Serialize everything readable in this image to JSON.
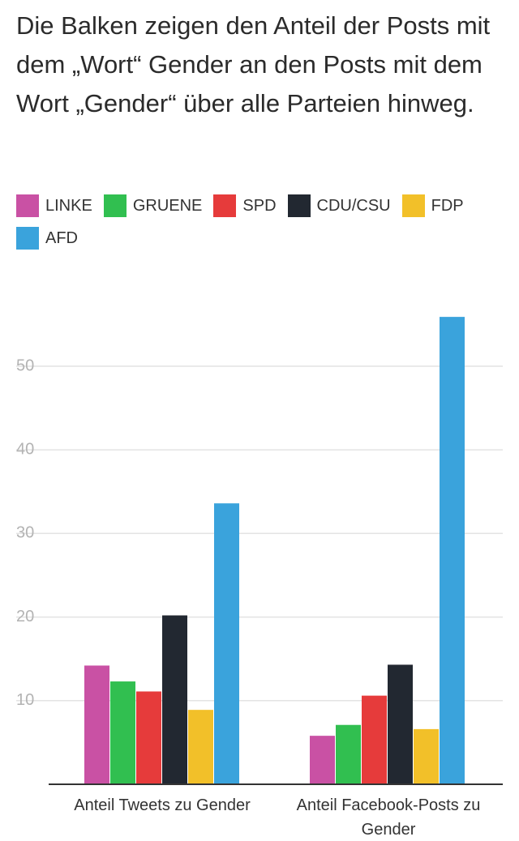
{
  "title": "Die Balken zeigen den Anteil der Posts mit dem „Wort“ Gender an den Posts mit dem Wort „Gender“ über alle Parteien hinweg.",
  "legend": [
    {
      "name": "LINKE",
      "color": "#c951a4"
    },
    {
      "name": "GRUENE",
      "color": "#31bf50"
    },
    {
      "name": "SPD",
      "color": "#e63b3b"
    },
    {
      "name": "CDU/CSU",
      "color": "#222831"
    },
    {
      "name": "FDP",
      "color": "#f2c029"
    },
    {
      "name": "AFD",
      "color": "#3aa3dc"
    }
  ],
  "chart_data": {
    "type": "bar",
    "categories": [
      "Anteil Tweets zu Gender",
      "Anteil Facebook-Posts zu Gender"
    ],
    "category_lines": [
      [
        "Anteil Tweets zu Gender"
      ],
      [
        "Anteil Facebook-Posts zu",
        "Gender"
      ]
    ],
    "series": [
      {
        "name": "LINKE",
        "color": "#c951a4",
        "values": [
          14.2,
          5.8
        ]
      },
      {
        "name": "GRUENE",
        "color": "#31bf50",
        "values": [
          12.3,
          7.1
        ]
      },
      {
        "name": "SPD",
        "color": "#e63b3b",
        "values": [
          11.1,
          10.6
        ]
      },
      {
        "name": "CDU/CSU",
        "color": "#222831",
        "values": [
          20.2,
          14.3
        ]
      },
      {
        "name": "FDP",
        "color": "#f2c029",
        "values": [
          8.9,
          6.6
        ]
      },
      {
        "name": "AFD",
        "color": "#3aa3dc",
        "values": [
          33.6,
          55.9
        ]
      }
    ],
    "yticks": [
      10,
      20,
      30,
      40,
      50
    ],
    "ylim": [
      0,
      57
    ],
    "grid": true,
    "legend_position": "top"
  }
}
